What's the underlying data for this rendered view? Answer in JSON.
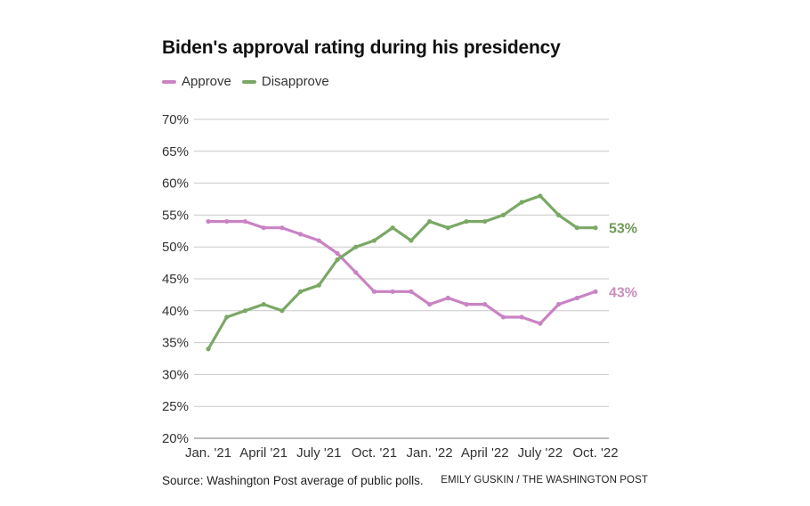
{
  "chart_data": {
    "type": "line",
    "title": "Biden's approval rating during his presidency",
    "xlabel": "",
    "ylabel": "",
    "ylim": [
      20,
      70
    ],
    "yticks": [
      20,
      25,
      30,
      35,
      40,
      45,
      50,
      55,
      60,
      65,
      70
    ],
    "ytick_labels": [
      "20%",
      "25%",
      "30%",
      "35%",
      "40%",
      "45%",
      "50%",
      "55%",
      "60%",
      "65%",
      "70%"
    ],
    "xtick_labels": [
      "Jan. '21",
      "April '21",
      "July '21",
      "Oct. '21",
      "Jan. '22",
      "April '22",
      "July '22",
      "Oct. '22"
    ],
    "grid": "horizontal",
    "legend_position": "top-left",
    "series": [
      {
        "name": "Approve",
        "color": "#c983c4",
        "values": [
          54,
          54,
          54,
          53,
          53,
          52,
          51,
          49,
          46,
          43,
          43,
          43,
          41,
          42,
          41,
          41,
          39,
          39,
          38,
          41,
          42,
          43
        ],
        "end_label": "43%",
        "end_label_color": "#c98ebb"
      },
      {
        "name": "Disapprove",
        "color": "#7aa865",
        "values": [
          34,
          39,
          40,
          41,
          40,
          43,
          44,
          48,
          50,
          51,
          53,
          51,
          54,
          53,
          54,
          54,
          55,
          57,
          58,
          55,
          53,
          53
        ],
        "end_label": "53%",
        "end_label_color": "#6f9a58"
      }
    ]
  },
  "footer": {
    "source": "Source: Washington Post average of public polls.",
    "credit": "EMILY GUSKIN / THE WASHINGTON POST"
  }
}
